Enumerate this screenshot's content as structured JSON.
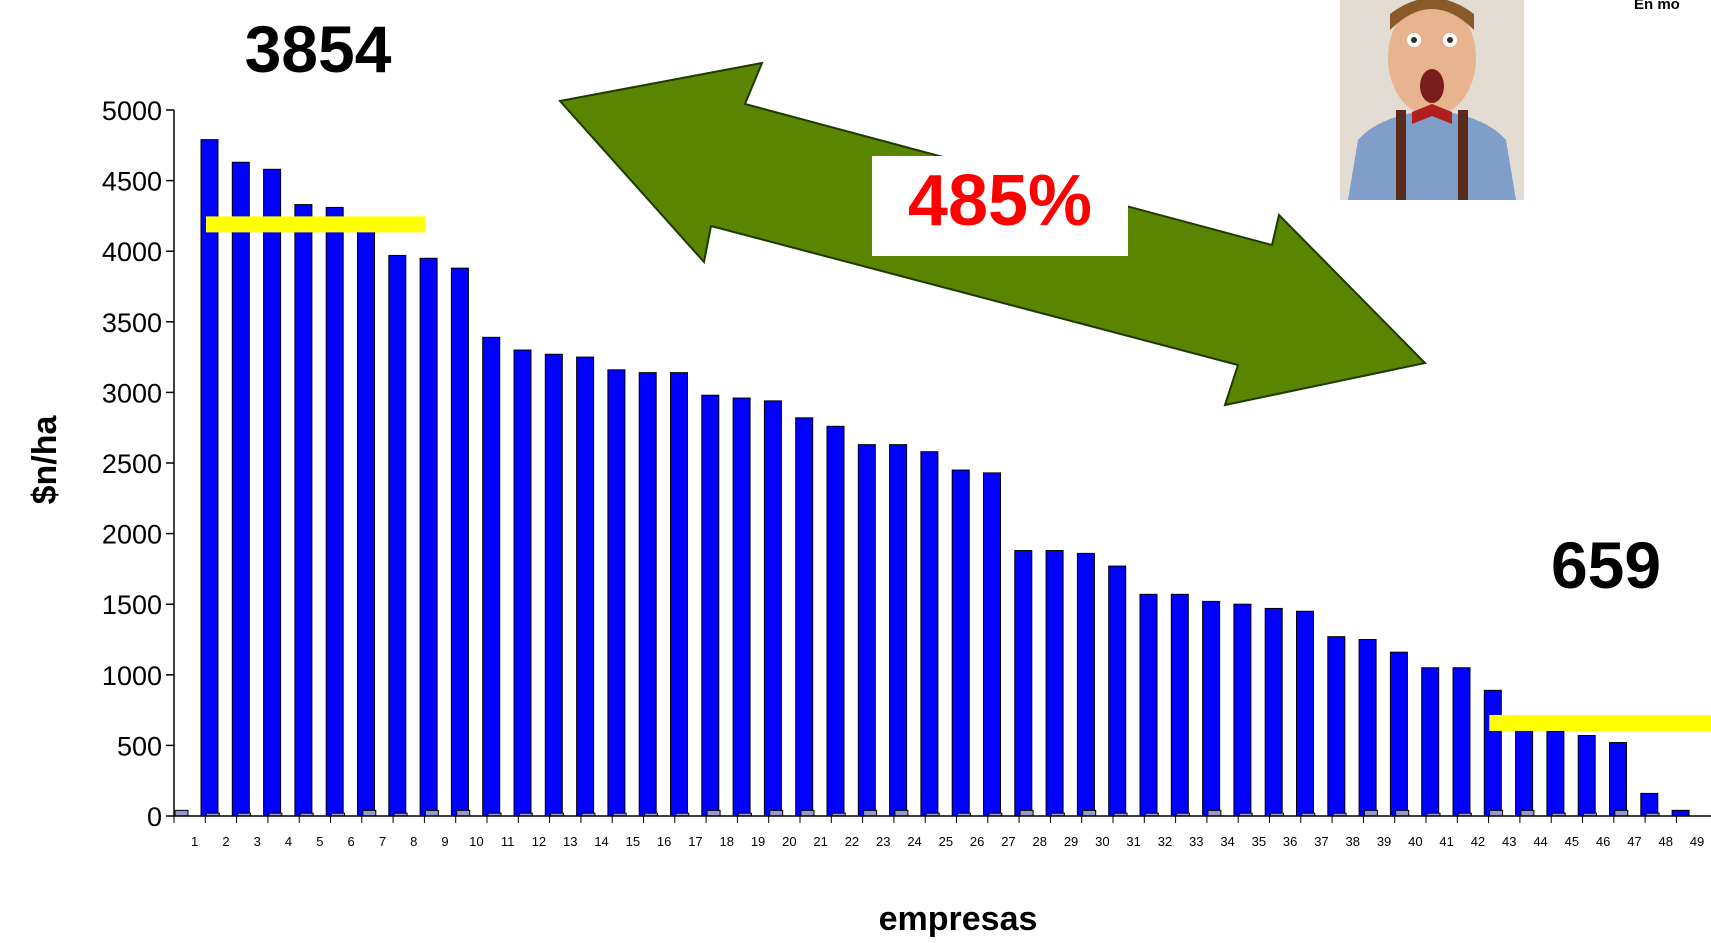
{
  "annotations": {
    "high_value": "3854",
    "low_value": "659",
    "percent": "485%",
    "corner_text": "En mo"
  },
  "colors": {
    "bar": "#0000ff",
    "secondary_bar": "#9999cc",
    "highlight_line": "#ffff00",
    "arrow": "#5a8500",
    "percent_text": "#ff0000"
  },
  "chart_data": {
    "type": "bar",
    "title": "",
    "xlabel": "empresas",
    "ylabel": "$n/ha",
    "ylim": [
      0,
      5000
    ],
    "yticks": [
      0,
      500,
      1000,
      1500,
      2000,
      2500,
      3000,
      3500,
      4000,
      4500,
      5000
    ],
    "grid": false,
    "legend": "none",
    "categories": [
      "1",
      "2",
      "3",
      "4",
      "5",
      "6",
      "7",
      "8",
      "9",
      "10",
      "11",
      "12",
      "13",
      "14",
      "15",
      "16",
      "17",
      "18",
      "19",
      "20",
      "21",
      "22",
      "23",
      "24",
      "25",
      "26",
      "27",
      "28",
      "29",
      "30",
      "31",
      "32",
      "33",
      "34",
      "35",
      "36",
      "37",
      "38",
      "39",
      "40",
      "41",
      "42",
      "43",
      "44",
      "45",
      "46",
      "47",
      "48",
      "49"
    ],
    "series": [
      {
        "values": [
          4790,
          4630,
          4580,
          4330,
          4310,
          4200,
          3970,
          3950,
          3880,
          3390,
          3300,
          3270,
          3250,
          3160,
          3140,
          3140,
          2980,
          2960,
          2940,
          2820,
          2760,
          2630,
          2630,
          2580,
          2450,
          2430,
          1880,
          1880,
          1860,
          1770,
          1570,
          1570,
          1520,
          1500,
          1470,
          1450,
          1270,
          1250,
          1160,
          1050,
          1050,
          890,
          640,
          600,
          570,
          520,
          160,
          40,
          0
        ]
      },
      {
        "values": [
          40,
          20,
          20,
          20,
          20,
          20,
          40,
          20,
          40,
          40,
          20,
          20,
          20,
          20,
          20,
          20,
          20,
          40,
          20,
          40,
          40,
          20,
          40,
          40,
          20,
          20,
          20,
          40,
          20,
          40,
          20,
          20,
          20,
          40,
          20,
          20,
          20,
          20,
          40,
          40,
          20,
          20,
          40,
          40,
          20,
          20,
          40,
          20,
          0
        ]
      }
    ],
    "reference_lines": [
      {
        "value": 4190,
        "from_category": "1",
        "to_category": "8"
      },
      {
        "value": 659,
        "from_category": "42",
        "to_category": "49"
      }
    ]
  }
}
